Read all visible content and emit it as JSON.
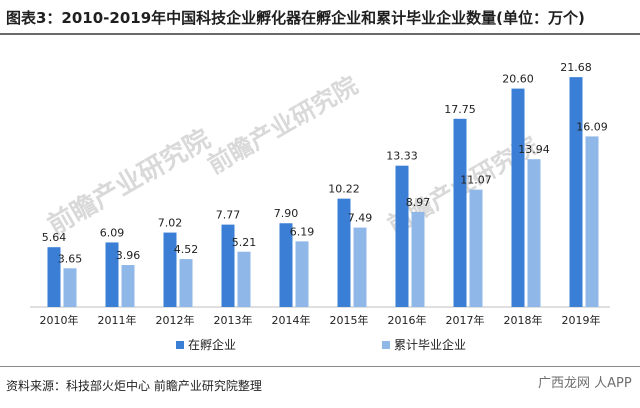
{
  "header": {
    "title": "图表3：2010-2019年中国科技企业孵化器在孵企业和累计毕业企业数量(单位：万个)"
  },
  "footer": {
    "source": "资料来源：科技部火炬中心 前瞻产业研究院整理",
    "badge": "广西龙网 人APP"
  },
  "watermarks": [
    "前瞻产业研究院",
    "前瞻产业研究院",
    "前瞻产业研究院"
  ],
  "colors": {
    "series1": "#3a7fd5",
    "series2": "#8fb8e8",
    "axis": "#bfbfbf",
    "text": "#222222"
  },
  "chart_data": {
    "type": "bar",
    "title": "图表3：2010-2019年中国科技企业孵化器在孵企业和累计毕业企业数量(单位：万个)",
    "xlabel": "",
    "ylabel": "",
    "ylim": [
      0,
      24
    ],
    "grid": false,
    "legend_position": "bottom",
    "categories": [
      "2010年",
      "2011年",
      "2012年",
      "2013年",
      "2014年",
      "2015年",
      "2016年",
      "2017年",
      "2018年",
      "2019年"
    ],
    "series": [
      {
        "name": "在孵企业",
        "values": [
          5.64,
          6.09,
          7.02,
          7.77,
          7.9,
          10.22,
          13.33,
          17.75,
          20.6,
          21.68
        ]
      },
      {
        "name": "累计毕业企业",
        "values": [
          3.65,
          3.96,
          4.52,
          5.21,
          6.19,
          7.49,
          8.97,
          11.07,
          13.94,
          16.09
        ]
      }
    ],
    "data_labels": [
      [
        "5.64",
        "6.09",
        "7.02",
        "7.77",
        "7.90",
        "10.22",
        "13.33",
        "17.75",
        "20.60",
        "21.68"
      ],
      [
        "3.65",
        "3.96",
        "4.52",
        "5.21",
        "6.19",
        "7.49",
        "8.97",
        "11.07",
        "13.94",
        "16.09"
      ]
    ]
  }
}
